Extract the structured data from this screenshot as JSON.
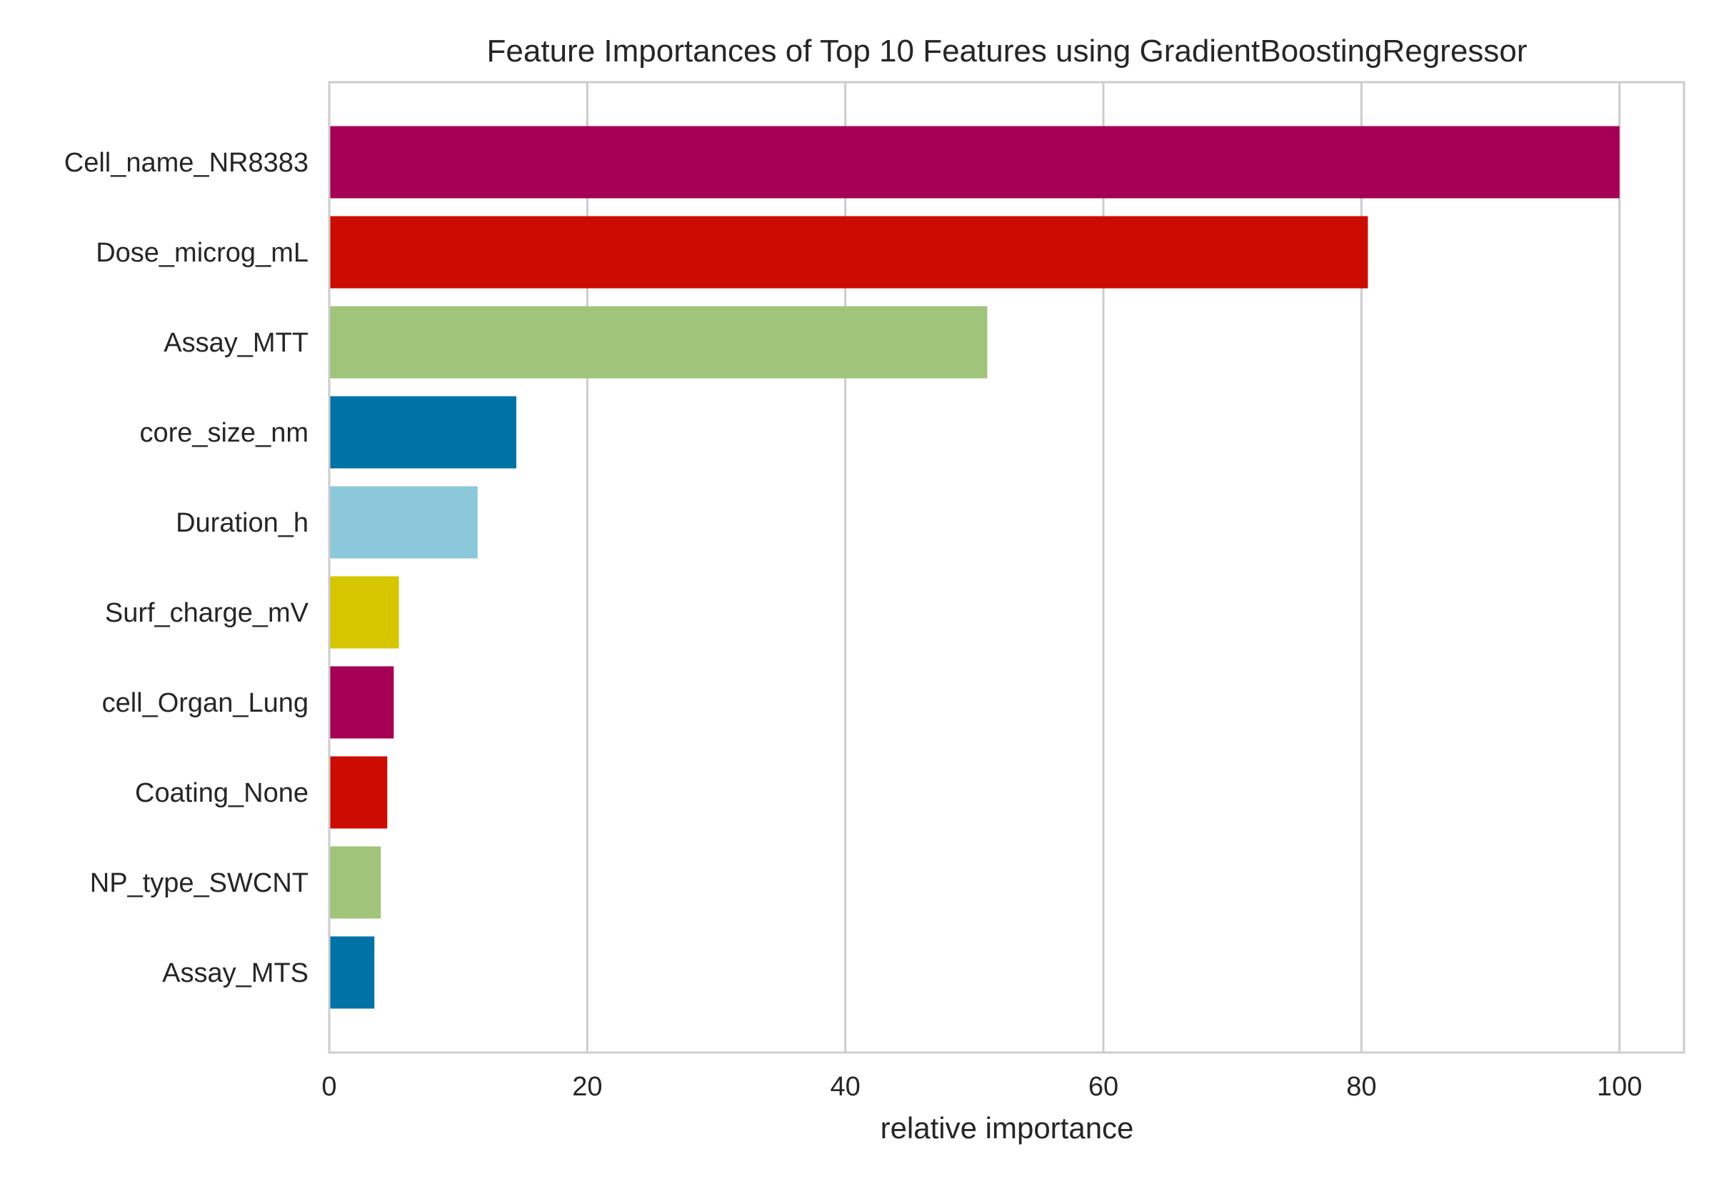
{
  "chart_data": {
    "type": "bar",
    "orientation": "horizontal",
    "title": "Feature Importances of Top 10 Features using GradientBoostingRegressor",
    "xlabel": "relative importance",
    "ylabel": "",
    "xlim": [
      0,
      105
    ],
    "xticks": [
      0,
      20,
      40,
      60,
      80,
      100
    ],
    "grid": true,
    "legend": "none",
    "categories": [
      "Cell_name_NR8383",
      "Dose_microg_mL",
      "Assay_MTT",
      "core_size_nm",
      "Duration_h",
      "Surf_charge_mV",
      "cell_Organ_Lung",
      "Coating_None",
      "NP_type_SWCNT",
      "Assay_MTS"
    ],
    "values": [
      100,
      80.5,
      51,
      14.5,
      11.5,
      5.4,
      5.0,
      4.5,
      4.0,
      3.5
    ],
    "colors": [
      "#a50055",
      "#cc0c02",
      "#9fc47a",
      "#0072a6",
      "#8bc9da",
      "#d5c600",
      "#a50055",
      "#cc0c02",
      "#9fc47a",
      "#0072a6"
    ],
    "grid_color": "#cccccc",
    "text_color": "#262626"
  }
}
